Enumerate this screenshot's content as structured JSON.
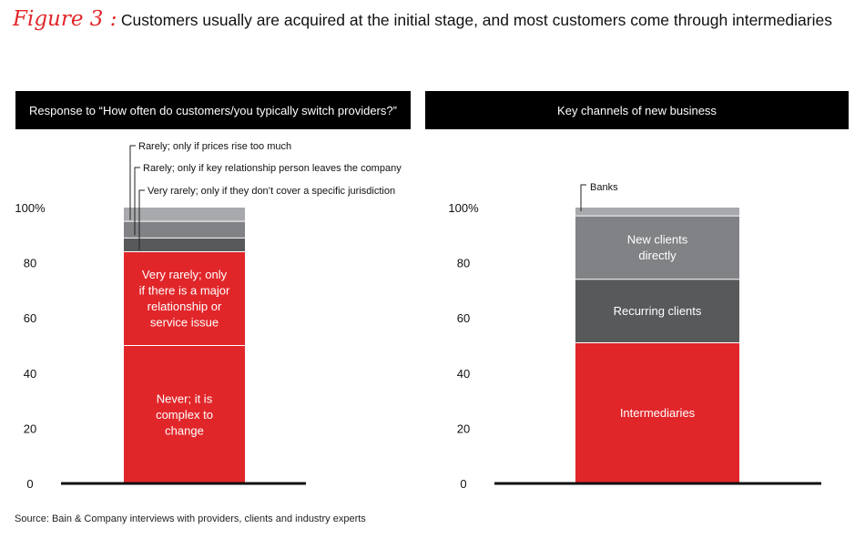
{
  "figure": {
    "label": "Figure 3 :",
    "title": "Customers usually are acquired at the initial stage, and most customers come through intermediaries"
  },
  "source": "Source: Bain & Company interviews with providers, clients and industry experts",
  "chart_data": [
    {
      "type": "bar",
      "stacked": true,
      "title": "Response to “How often do customers/you typically switch providers?”",
      "ylim": [
        0,
        100
      ],
      "yticks": [
        "0",
        "20",
        "40",
        "60",
        "80",
        "100%"
      ],
      "series": [
        {
          "name": "Never; it is complex to change",
          "value": 50,
          "color": "#e1262a"
        },
        {
          "name": "Very rarely; only if there is a major relationship or service issue",
          "value": 34,
          "color": "#e1262a"
        },
        {
          "name": "Very rarely; only if they don't cover a specific jurisdiction",
          "value": 5,
          "color": "#58595b"
        },
        {
          "name": "Rarely; only if key relationship person leaves the company",
          "value": 6,
          "color": "#808285"
        },
        {
          "name": "Rarely; only if prices rise too much",
          "value": 5,
          "color": "#a7a9ac"
        }
      ],
      "segment_labels": [
        [
          "Never; it is",
          "complex to",
          "change"
        ],
        [
          "Very rarely; only",
          "if there is a major",
          "relationship or",
          "service issue"
        ],
        [],
        [],
        []
      ],
      "callouts": [
        "Rarely; only if prices rise too much",
        "Rarely; only if key relationship person leaves the company",
        "Very rarely; only if they don’t cover a specific jurisdiction"
      ]
    },
    {
      "type": "bar",
      "stacked": true,
      "title": "Key channels of new business",
      "ylim": [
        0,
        100
      ],
      "yticks": [
        "0",
        "20",
        "40",
        "60",
        "80",
        "100%"
      ],
      "series": [
        {
          "name": "Intermediaries",
          "value": 51,
          "color": "#e1262a"
        },
        {
          "name": "Recurring clients",
          "value": 23,
          "color": "#58595b"
        },
        {
          "name": "New clients directly",
          "value": 23,
          "color": "#808285"
        },
        {
          "name": "Banks",
          "value": 3,
          "color": "#a7a9ac"
        }
      ],
      "segment_labels": [
        [
          "Intermediaries"
        ],
        [
          "Recurring clients"
        ],
        [
          "New clients",
          "directly"
        ],
        []
      ],
      "callouts": [
        "Banks"
      ]
    }
  ]
}
